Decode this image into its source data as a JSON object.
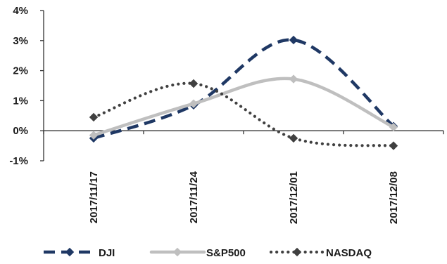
{
  "chart_data": {
    "type": "line",
    "title": "",
    "xlabel": "",
    "ylabel": "",
    "categories": [
      "2017/11/17",
      "2017/11/24",
      "2017/12/01",
      "2017/12/08"
    ],
    "ylim": [
      -1,
      4
    ],
    "yticks": [
      -1,
      0,
      1,
      2,
      3,
      4
    ],
    "ytick_labels": [
      "-1%",
      "0%",
      "1%",
      "2%",
      "3%",
      "4%"
    ],
    "grid": false,
    "smooth": true,
    "legend": "bottom",
    "series": [
      {
        "name": "DJI",
        "values": [
          -0.25,
          0.85,
          3.02,
          0.15
        ],
        "color": "#1f3864",
        "dash": "dashed",
        "marker": "diamond"
      },
      {
        "name": "S&P500",
        "values": [
          -0.15,
          0.9,
          1.72,
          0.12
        ],
        "color": "#bfbfbf",
        "dash": "solid",
        "marker": "diamond"
      },
      {
        "name": "NASDAQ",
        "values": [
          0.45,
          1.57,
          -0.25,
          -0.5
        ],
        "color": "#404040",
        "dash": "dotted",
        "marker": "diamond"
      }
    ]
  }
}
